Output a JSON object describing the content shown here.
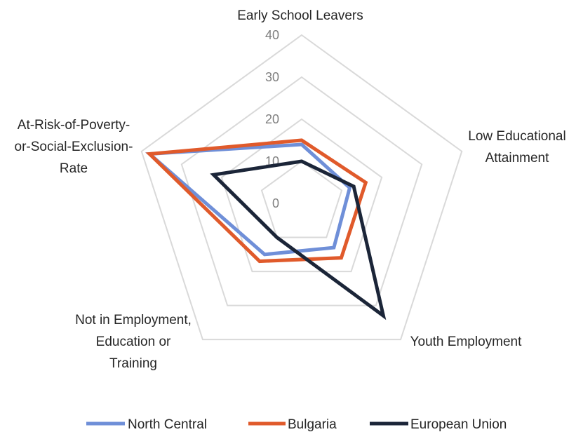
{
  "chart_data": {
    "type": "radar",
    "title": "",
    "categories": [
      [
        "Early School Leavers"
      ],
      [
        "Low Educational",
        "Attainment"
      ],
      [
        "Youth Employment"
      ],
      [
        "Not in Employment,",
        "Education or",
        "Training"
      ],
      [
        "At-Risk-of-Poverty-",
        "or-Social-Exclusion-",
        "Rate"
      ]
    ],
    "rlim": [
      0,
      40
    ],
    "ticks": [
      "0",
      "10",
      "20",
      "30",
      "40"
    ],
    "grid": true,
    "legend_position": "bottom",
    "series": [
      {
        "name": "North Central",
        "color": "#6f8fd8",
        "values": [
          14,
          12,
          13,
          15,
          38
        ]
      },
      {
        "name": "Bulgaria",
        "color": "#e05a2b",
        "values": [
          15,
          16,
          16,
          17,
          38
        ]
      },
      {
        "name": "European Union",
        "color": "#1b2538",
        "values": [
          10,
          13,
          33,
          10,
          22
        ]
      }
    ]
  }
}
